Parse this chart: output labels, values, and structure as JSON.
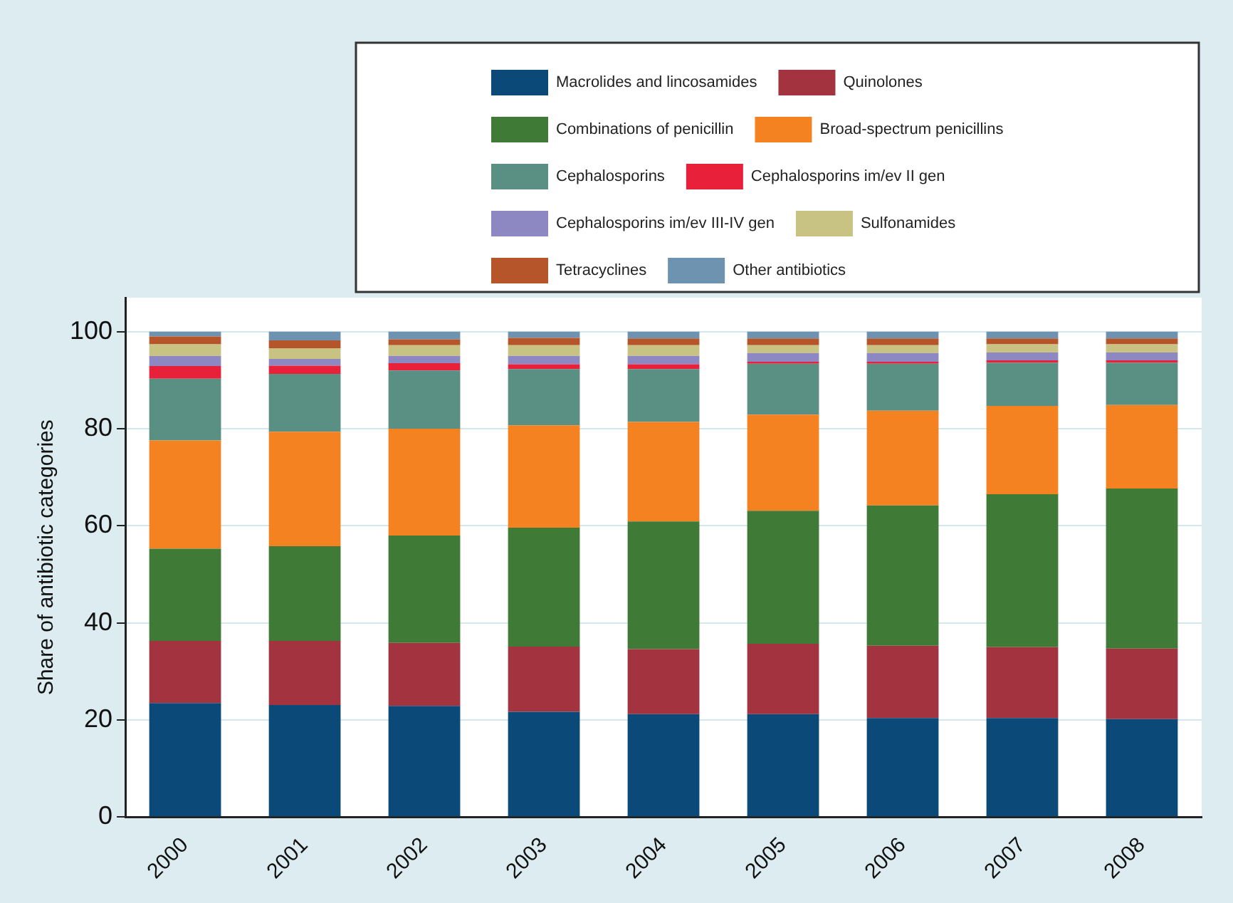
{
  "chart_data": {
    "type": "bar",
    "stacked": true,
    "ylabel": "Share of antibiotic categories",
    "categories": [
      "2000",
      "2001",
      "2002",
      "2003",
      "2004",
      "2005",
      "2006",
      "2007",
      "2008"
    ],
    "ylim": [
      0,
      107
    ],
    "yticks": [
      0,
      20,
      40,
      60,
      80,
      100
    ],
    "grid": "y",
    "legend": "top right",
    "series": [
      {
        "name": "Macrolides and lincosamides",
        "color": "#0b4a78",
        "values": [
          23.5,
          23.1,
          22.9,
          21.7,
          21.2,
          21.2,
          20.4,
          20.4,
          20.2
        ]
      },
      {
        "name": "Quinolones",
        "color": "#a3343f",
        "values": [
          12.8,
          13.2,
          13.0,
          13.4,
          13.4,
          14.5,
          14.9,
          14.6,
          14.5
        ]
      },
      {
        "name": "Combinations of penicillin",
        "color": "#3f7a37",
        "values": [
          19.0,
          19.5,
          22.1,
          24.5,
          26.3,
          27.4,
          28.9,
          31.5,
          33.0
        ]
      },
      {
        "name": "Broad-spectrum penicillins",
        "color": "#f58220",
        "values": [
          22.3,
          23.6,
          22.0,
          21.1,
          20.5,
          19.8,
          19.5,
          18.2,
          17.2
        ]
      },
      {
        "name": "Cephalosporins",
        "color": "#5a8f84",
        "values": [
          12.7,
          11.9,
          12.0,
          11.6,
          10.9,
          10.5,
          9.7,
          8.9,
          8.7
        ]
      },
      {
        "name": "Cephalosporins im/ev II gen",
        "color": "#e8203a",
        "values": [
          2.6,
          1.7,
          1.5,
          1.0,
          1.0,
          0.4,
          0.4,
          0.5,
          0.5
        ]
      },
      {
        "name": "Cephalosporins im/ev III-IV gen",
        "color": "#8e88c2",
        "values": [
          2.1,
          1.4,
          1.5,
          1.7,
          1.7,
          1.8,
          1.8,
          1.6,
          1.6
        ]
      },
      {
        "name": "Sulfonamides",
        "color": "#c8c283",
        "values": [
          2.4,
          2.2,
          2.2,
          2.2,
          2.2,
          1.6,
          1.6,
          1.7,
          1.7
        ]
      },
      {
        "name": "Tetracyclines",
        "color": "#b7552a",
        "values": [
          1.6,
          1.6,
          1.2,
          1.5,
          1.4,
          1.4,
          1.4,
          1.2,
          1.2
        ]
      },
      {
        "name": "Other antibiotics",
        "color": "#6d93b0",
        "values": [
          1.0,
          1.8,
          1.6,
          1.3,
          1.4,
          1.4,
          1.4,
          1.4,
          1.4
        ]
      }
    ]
  }
}
